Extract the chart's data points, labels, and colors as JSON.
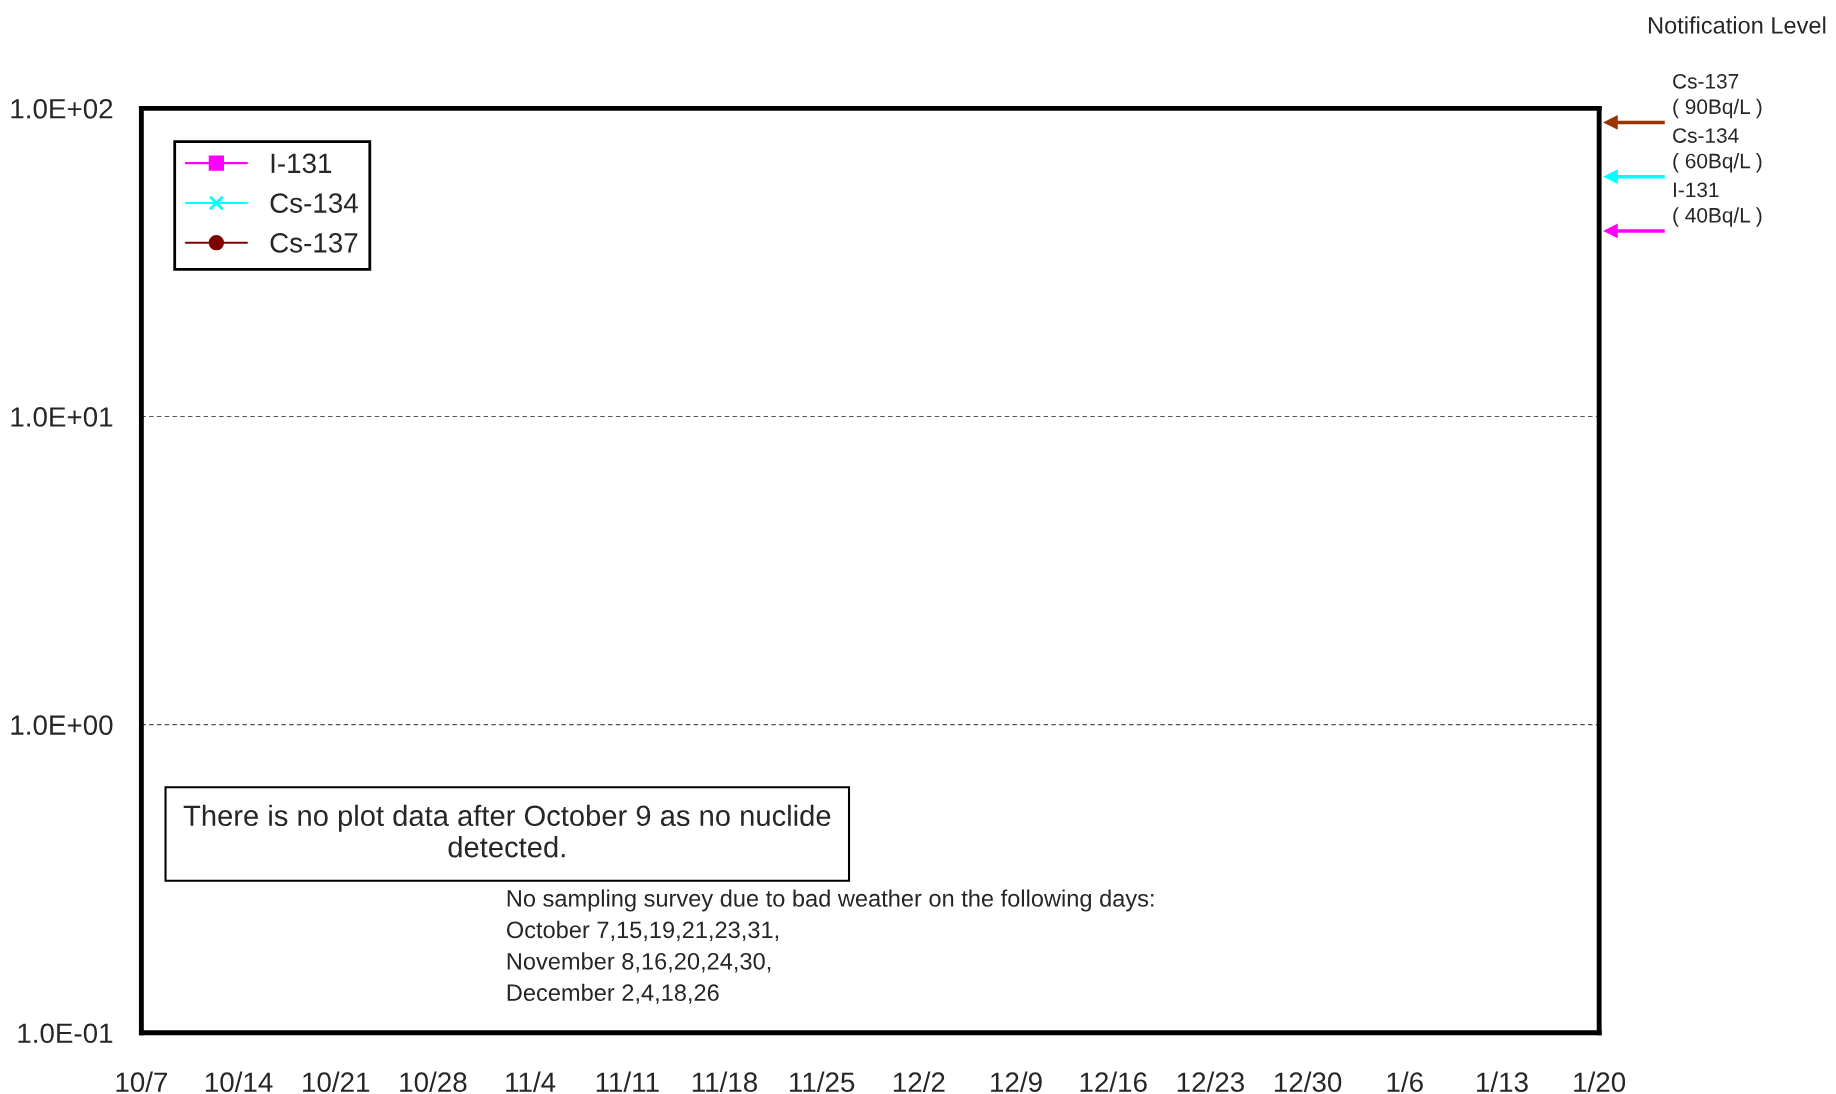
{
  "chart_data": {
    "type": "line",
    "series": [
      {
        "name": "I-131",
        "color": "#ff00ff",
        "marker": "square",
        "values": [
          null,
          null,
          null,
          null,
          null,
          null,
          null,
          null,
          null,
          null,
          null,
          null,
          null,
          null,
          null,
          null
        ]
      },
      {
        "name": "Cs-134",
        "color": "#00ffff",
        "marker": "cross",
        "values": [
          null,
          null,
          null,
          null,
          null,
          null,
          null,
          null,
          null,
          null,
          null,
          null,
          null,
          null,
          null,
          null
        ]
      },
      {
        "name": "Cs-137",
        "color": "#800000",
        "marker": "circle",
        "values": [
          null,
          null,
          null,
          null,
          null,
          null,
          null,
          null,
          null,
          null,
          null,
          null,
          null,
          null,
          null,
          null
        ]
      }
    ],
    "log": "y",
    "ylim": [
      0.1,
      100
    ],
    "yticks": [
      {
        "value": 0.1,
        "label": "1.0E-01"
      },
      {
        "value": 1,
        "label": "1.0E+00"
      },
      {
        "value": 10,
        "label": "1.0E+01"
      },
      {
        "value": 100,
        "label": "1.0E+02"
      }
    ],
    "categories": [
      "10/7",
      "10/14",
      "10/21",
      "10/28",
      "11/4",
      "11/11",
      "11/18",
      "11/25",
      "12/2",
      "12/9",
      "12/16",
      "12/23",
      "12/30",
      "1/6",
      "1/13",
      "1/20"
    ],
    "grid": "y",
    "legend": "top left",
    "ref_lines": [
      {
        "axis": "y",
        "value": 90,
        "label": "Cs-137\n( 90Bq/L )",
        "color": "#993300"
      },
      {
        "axis": "y",
        "value": 60,
        "label": "Cs-134\n( 60Bq/L )",
        "color": "#00ffff"
      },
      {
        "axis": "y",
        "value": 40,
        "label": "I-131\n( 40Bq/L )",
        "color": "#ff00ff"
      }
    ],
    "annotations": [
      "Notification Level",
      "There is no plot data after October 9 as no nuclide\ndetected.",
      "No sampling survey due to bad weather on the following days:\nOctober 7,15,19,21,23,31,\nNovember 8,16,20,24,30,\nDecember 2,4,18,26"
    ]
  }
}
